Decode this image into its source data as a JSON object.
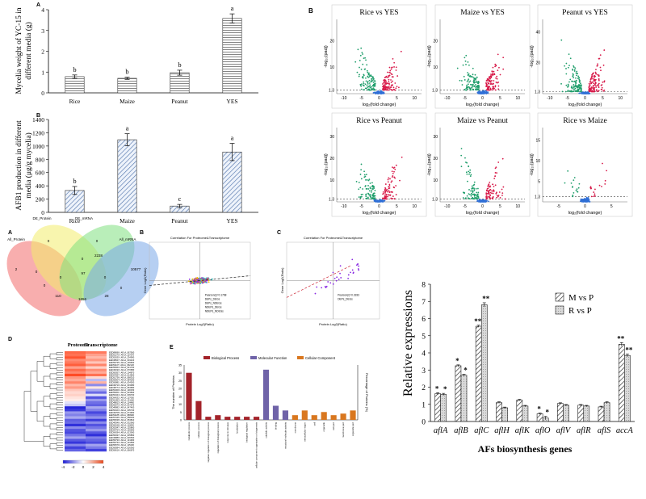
{
  "chart_data": [
    {
      "id": "mycelia",
      "type": "bar",
      "panel_label": "A",
      "ylabel_lines": [
        "Mycelia weight of YC-15 in",
        "different media (g)"
      ],
      "categories": [
        "Rice",
        "Maize",
        "Peanut",
        "YES"
      ],
      "values": [
        0.78,
        0.7,
        0.97,
        3.58
      ],
      "errors": [
        0.08,
        0.05,
        0.12,
        0.22
      ],
      "letters": [
        "b",
        "b",
        "b",
        "a"
      ],
      "ylim": [
        0,
        4
      ],
      "yticks": [
        "0",
        "1",
        "2",
        "3",
        "4"
      ],
      "fill": "horizontal-stripes"
    },
    {
      "id": "afb1",
      "type": "bar",
      "panel_label": "B",
      "ylabel_lines": [
        "AFB1 production in different",
        "media (μg/g mycelia)"
      ],
      "categories": [
        "Rice",
        "Maize",
        "Peanut",
        "YES"
      ],
      "values": [
        330,
        1095,
        95,
        910
      ],
      "errors": [
        60,
        90,
        25,
        130
      ],
      "letters": [
        "b",
        "a",
        "c",
        "a"
      ],
      "ylim": [
        0,
        1400
      ],
      "yticks": [
        "0",
        "200",
        "400",
        "600",
        "800",
        "1000",
        "1200",
        "1400"
      ],
      "fill": "diagonal-stripes"
    },
    {
      "id": "volcano",
      "type": "scatter",
      "panel_label": "B",
      "xlabel": "log₂(fold change)",
      "ylabel": "-log₁₀(padj)",
      "colors": {
        "up": "#d81b4a",
        "down": "#1f9e6b",
        "ns": "#2f6fd6"
      },
      "panels": [
        {
          "title": "Rice vs YES",
          "xticks": [
            "-10",
            "-5",
            "0",
            "5",
            "10"
          ],
          "yticks": [
            "1.3",
            "10",
            "20"
          ],
          "xlim": [
            -12,
            12
          ],
          "ylim": [
            0,
            28
          ]
        },
        {
          "title": "Maize vs YES",
          "xticks": [
            "-10",
            "-5",
            "0",
            "5",
            "10"
          ],
          "yticks": [
            "1.3",
            "10",
            "20"
          ],
          "xlim": [
            -12,
            12
          ],
          "ylim": [
            0,
            28
          ]
        },
        {
          "title": "Peanut vs YES",
          "xticks": [
            "-10",
            "-5",
            "0",
            "5",
            "10"
          ],
          "yticks": [
            "1.3",
            "20",
            "40"
          ],
          "xlim": [
            -12,
            12
          ],
          "ylim": [
            0,
            48
          ]
        },
        {
          "title": "Rice vs Peanut",
          "xticks": [
            "-10",
            "-5",
            "0",
            "5",
            "10"
          ],
          "yticks": [
            "1.3",
            "10",
            "20",
            "30"
          ],
          "xlim": [
            -12,
            12
          ],
          "ylim": [
            0,
            34
          ]
        },
        {
          "title": "Maize vs Peanut",
          "xticks": [
            "-10",
            "-5",
            "0",
            "5",
            "10"
          ],
          "yticks": [
            "1.3",
            "10",
            "20",
            "30"
          ],
          "xlim": [
            -12,
            12
          ],
          "ylim": [
            0,
            34
          ]
        },
        {
          "title": "Rice vs Maize",
          "xticks": [
            "-5",
            "0",
            "5"
          ],
          "yticks": [
            "1.3",
            "5",
            "10",
            "15"
          ],
          "xlim": [
            -8,
            8
          ],
          "ylim": [
            0,
            18
          ]
        }
      ]
    },
    {
      "id": "venn",
      "type": "diagram",
      "panel_label": "A",
      "set_labels": [
        "All_Protein",
        "DE_Protein",
        "DE_mRNA",
        "All_mRNA"
      ],
      "set_colors": [
        "#f26b6b",
        "#f2ec6b",
        "#7fe07f",
        "#7aa7e8"
      ],
      "region_counts": [
        "2",
        "0",
        "0",
        "2238",
        "10577",
        "0",
        "0",
        "0",
        "0",
        "97",
        "0",
        "0",
        "110",
        "28",
        "1656"
      ]
    },
    {
      "id": "correlation",
      "type": "scatter",
      "panels": [
        {
          "panel_label": "B",
          "title": "Correlation For Proteome&Transcriptome",
          "xlabel": "Protein Log2(Ratio)",
          "ylabel": "Gene Log2(Ratio)",
          "legend": [
            "Pearson(r)=0.1768",
            "DEPs_DEGs",
            "DEPs_NDEGs",
            "NDEPs_DEGs",
            "NDEPs_NDEGs"
          ]
        },
        {
          "panel_label": "C",
          "title": "Correlation For Proteome&Transcriptome",
          "xlabel": "Protein Log2(Ratio)",
          "ylabel": "Gene Log2(Ratio)",
          "legend": [
            "Pearson(r)=0.3333",
            "DEPs_DEGs"
          ]
        }
      ]
    },
    {
      "id": "heatmap",
      "type": "heatmap",
      "panel_label": "D",
      "columns": [
        "Proteome",
        "Transcriptome"
      ],
      "colorbar_ticks": [
        "-4",
        "-2",
        "0",
        "2",
        "4"
      ],
      "rows": [
        {
          "label": "EED88696 / AFLA_067560",
          "p": 3.2,
          "t": 2.8
        },
        {
          "label": "EED51270 / AFLA_117570",
          "p": 3.0,
          "t": 2.0
        },
        {
          "label": "EED52630 / AFLA_234990",
          "p": 3.6,
          "t": 1.5
        },
        {
          "label": "EED48627 / AFLA_019210",
          "p": 2.4,
          "t": 2.2
        },
        {
          "label": "EED56735 / AFLA_139660",
          "p": 2.8,
          "t": 1.2
        },
        {
          "label": "EED51107 / AFLA_062120",
          "p": 3.4,
          "t": 2.6
        },
        {
          "label": "EED55063 / AFLA_021700",
          "p": 2.0,
          "t": 1.0
        },
        {
          "label": "EED49190 / AFLA_070680",
          "p": 3.1,
          "t": 2.4
        },
        {
          "label": "EED50057 / AFLA_104870",
          "p": 2.5,
          "t": 1.8
        },
        {
          "label": "EED57837 / AFLA_014830",
          "p": 3.8,
          "t": 3.0
        },
        {
          "label": "EED51736 / AFLA_068310",
          "p": 2.2,
          "t": 0.8
        },
        {
          "label": "EED55004 / AFLA_084290",
          "p": 1.8,
          "t": -1.2
        },
        {
          "label": "EED50881 / AFLA_034500",
          "p": 2.6,
          "t": 1.6
        },
        {
          "label": "EED49710 / AFLA_033080",
          "p": 1.5,
          "t": -2.0
        },
        {
          "label": "EED48774 / AFLA_063680",
          "p": 2.1,
          "t": 0.5
        },
        {
          "label": "EED51009 / AFLA_130150",
          "p": 1.2,
          "t": -1.5
        },
        {
          "label": "EED55201 / AFLA_023840",
          "p": 0.8,
          "t": -2.6
        },
        {
          "label": "EED52344 / AFLA_009700",
          "p": 1.0,
          "t": -0.6
        },
        {
          "label": "EED54532 / AFLA_117650",
          "p": 0.6,
          "t": -3.0
        },
        {
          "label": "EED51453 / AFLA_131160",
          "p": 0.4,
          "t": -1.8
        },
        {
          "label": "EED48813 / AFLA_114460",
          "p": -0.5,
          "t": -2.5
        },
        {
          "label": "EED50073 / AFLA_037970",
          "p": -1.0,
          "t": -2.8
        },
        {
          "label": "EED48982 / AFLA_047400",
          "p": -3.8,
          "t": -1.5
        },
        {
          "label": "EED54103 / AFLA_005740",
          "p": -3.4,
          "t": -2.2
        },
        {
          "label": "EED49708 / AFLA_074960",
          "p": -1.8,
          "t": -3.2
        },
        {
          "label": "EED51185 / AFLA_089990",
          "p": -2.2,
          "t": -2.6
        },
        {
          "label": "EED57046 / AFLA_058150",
          "p": -1.5,
          "t": -1.9
        },
        {
          "label": "EED55038 / AFLA_053810",
          "p": -2.8,
          "t": -3.4
        },
        {
          "label": "EED49346 / AFLA_032990",
          "p": -2.6,
          "t": -2.0
        },
        {
          "label": "EED55158 / AFLA_110830",
          "p": -3.6,
          "t": -3.0
        },
        {
          "label": "EED52047 / AFLA_125860",
          "p": -2.0,
          "t": -2.4
        },
        {
          "label": "EED54754 / AFLA_125590",
          "p": -3.0,
          "t": -1.8
        },
        {
          "label": "EED54294 / AFLA_013060",
          "p": -3.2,
          "t": -2.9
        },
        {
          "label": "EED56337 / AFLA_035850",
          "p": -2.4,
          "t": -3.6
        },
        {
          "label": "EED49889 / AFLA_026530",
          "p": -1.6,
          "t": -2.2
        },
        {
          "label": "EED56730 / AFLA_131900",
          "p": -2.9,
          "t": -2.7
        },
        {
          "label": "EED56733 / AFLA_101590",
          "p": -3.5,
          "t": -3.1
        },
        {
          "label": "EED50579 / AFLA_115200",
          "p": -2.1,
          "t": -1.6
        },
        {
          "label": "EED56584 / AFLA_026360",
          "p": -3.3,
          "t": -2.3
        },
        {
          "label": "EED56616 / AFLA_066670",
          "p": -2.7,
          "t": -3.3
        }
      ]
    },
    {
      "id": "go",
      "type": "bar",
      "panel_label": "E",
      "ylabel": "The number of Proteins",
      "ylabel_right": "Percentage of Proteins (%)",
      "legend": [
        "Biological Process",
        "Molecular Function",
        "Cellular Component"
      ],
      "legend_colors": [
        "#a3232a",
        "#6f63a8",
        "#d9771f"
      ],
      "ylim": [
        0,
        35
      ],
      "yticks": [
        "0",
        "5",
        "10",
        "15",
        "20",
        "25",
        "30",
        "35"
      ],
      "categories": [
        "metabolic process",
        "cellular process",
        "negative regulation of biological process",
        "regulation of biological process",
        "response to stimulus",
        "localization",
        "biological regulation",
        "cellular component organization or biogenesis",
        "catalytic activity",
        "binding",
        "structural molecule activity",
        "membrane",
        "extracellular region",
        "cell",
        "organelle",
        "cell part",
        "membrane part",
        "organelle part"
      ],
      "values": [
        30,
        12,
        2,
        3,
        2,
        2,
        2,
        2,
        32,
        9,
        6,
        3,
        6,
        3,
        5,
        3,
        4,
        6
      ],
      "groups": [
        0,
        0,
        0,
        0,
        0,
        0,
        0,
        0,
        1,
        1,
        1,
        2,
        2,
        2,
        2,
        2,
        2,
        2
      ]
    },
    {
      "id": "qpcr",
      "type": "bar",
      "ylabel": "Relative expressions",
      "xlabel": "AFs biosynthesis genes",
      "categories": [
        "aflA",
        "aflB",
        "aflC",
        "aflH",
        "aflK",
        "aflO",
        "aflV",
        "aflR",
        "aflS",
        "accA"
      ],
      "series": [
        {
          "name": "M vs P",
          "values": [
            1.62,
            3.25,
            5.55,
            1.1,
            1.25,
            0.45,
            1.05,
            0.95,
            0.85,
            4.5
          ],
          "errors": [
            0.06,
            0.05,
            0.06,
            0.05,
            0.04,
            0.04,
            0.04,
            0.04,
            0.04,
            0.1
          ],
          "sig": [
            "*",
            "*",
            "**",
            "",
            "",
            "*",
            "",
            "",
            "",
            "**"
          ]
        },
        {
          "name": "R vs P",
          "values": [
            1.58,
            2.7,
            6.8,
            0.8,
            0.9,
            0.2,
            0.95,
            0.9,
            1.1,
            3.85
          ],
          "errors": [
            0.06,
            0.05,
            0.12,
            0.04,
            0.04,
            0.1,
            0.04,
            0.04,
            0.05,
            0.08
          ],
          "sig": [
            "*",
            "*",
            "**",
            "",
            "",
            "*",
            "",
            "",
            "",
            "**"
          ]
        }
      ],
      "ylim": [
        0,
        8
      ],
      "yticks": [
        "0",
        "1",
        "2",
        "3",
        "4",
        "5",
        "6",
        "7",
        "8"
      ]
    }
  ]
}
